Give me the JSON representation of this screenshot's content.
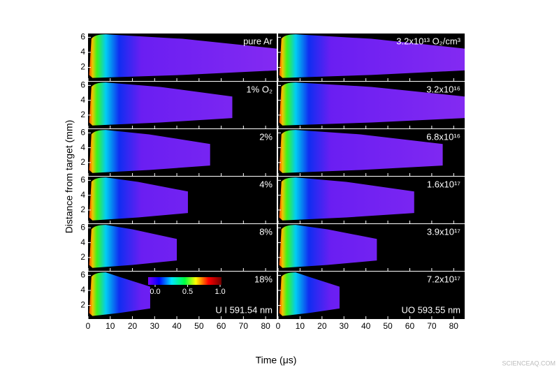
{
  "chart_data": {
    "type": "heatmap",
    "xlabel": "Time (μs)",
    "ylabel": "Distance from target (mm)",
    "xlim": [
      0,
      85
    ],
    "xticks": [
      0,
      10,
      20,
      30,
      40,
      50,
      60,
      70,
      80
    ],
    "ylim": [
      0.2,
      6.5
    ],
    "yticks": [
      2,
      4,
      6
    ],
    "colorbar": {
      "lim": [
        0,
        1
      ],
      "ticks": [
        {
          "value": 0,
          "label": "0.0"
        },
        {
          "value": 0.5,
          "label": "0.5"
        },
        {
          "value": 1,
          "label": "1.0"
        }
      ]
    },
    "panels": [
      {
        "label": "pure Ar",
        "plume_end": 85
      },
      {
        "label": "1% O₂",
        "plume_end": 65
      },
      {
        "label": "2%",
        "plume_end": 55
      },
      {
        "label": "4%",
        "plume_end": 45
      },
      {
        "label": "8%",
        "plume_end": 40
      },
      {
        "label": "18%",
        "plume_end": 28
      },
      {
        "label": "3.2x10¹³ O₂/cm³",
        "plume_end": 85
      },
      {
        "label": "3.2x10¹⁶",
        "plume_end": 85
      },
      {
        "label": "6.8x10¹⁶",
        "plume_end": 75
      },
      {
        "label": "1.6x10¹⁷",
        "plume_end": 62
      },
      {
        "label": "3.9x10¹⁷",
        "plume_end": 45
      },
      {
        "label": "7.2x10¹⁷",
        "plume_end": 28
      }
    ],
    "annotations": [
      "U I 591.54 nm",
      "UO 593.55 nm"
    ],
    "watermark": "SCIENCEAQ.COM"
  }
}
